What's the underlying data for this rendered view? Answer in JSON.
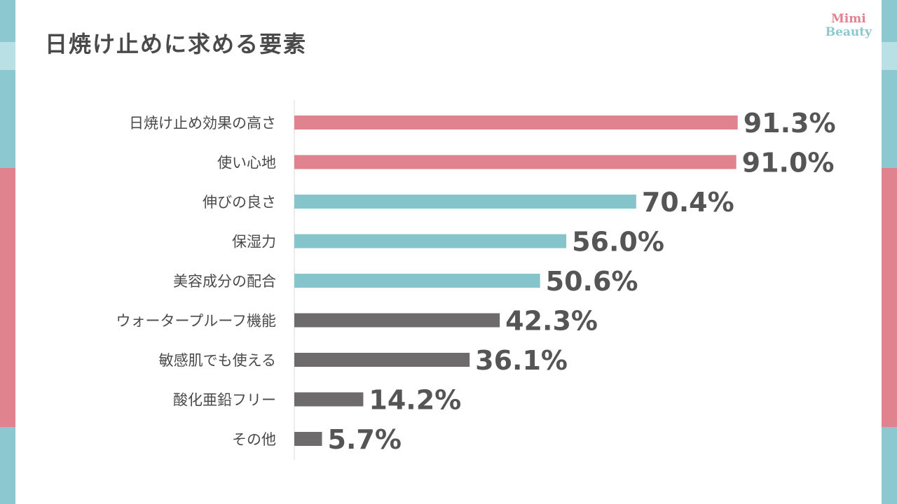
{
  "title": "日焼け止めに求める要素",
  "logo": {
    "line1": "Mimi",
    "line2": "Beauty"
  },
  "colors": {
    "pink": "#e1828f",
    "teal": "#86c4cc",
    "gray": "#6e6b6c"
  },
  "chart_data": {
    "type": "bar",
    "orientation": "horizontal",
    "title": "",
    "xlabel": "",
    "ylabel": "",
    "xlim": [
      0,
      100
    ],
    "categories": [
      "日焼け止め効果の高さ",
      "使い心地",
      "伸びの良さ",
      "保湿力",
      "美容成分の配合",
      "ウォータープルーフ機能",
      "敏感肌でも使える",
      "酸化亜鉛フリー",
      "その他"
    ],
    "values": [
      91.3,
      91.0,
      70.4,
      56.0,
      50.6,
      42.3,
      36.1,
      14.2,
      5.7
    ],
    "value_labels": [
      "91.3%",
      "91.0%",
      "70.4%",
      "56.0%",
      "50.6%",
      "42.3%",
      "36.1%",
      "14.2%",
      "5.7%"
    ],
    "bar_color_groups": [
      "pink",
      "pink",
      "teal",
      "teal",
      "teal",
      "gray",
      "gray",
      "gray",
      "gray"
    ],
    "grid": false
  }
}
